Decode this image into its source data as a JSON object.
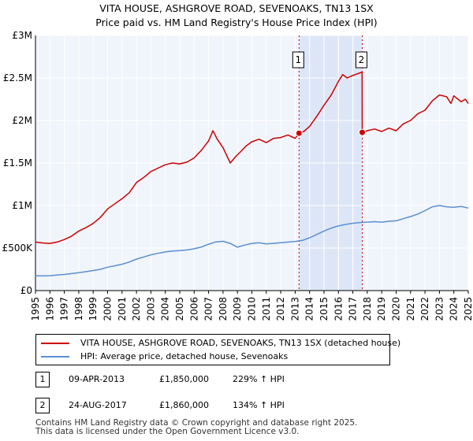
{
  "chart_data": {
    "type": "line",
    "title": "VITA HOUSE, ASHGROVE ROAD, SEVENOAKS, TN13 1SX",
    "subtitle": "Price paid vs. HM Land Registry's House Price Index (HPI)",
    "xlabel": "",
    "ylabel": "",
    "xlim": [
      1995,
      2025
    ],
    "ylim": [
      0,
      3000000
    ],
    "grid": true,
    "y_ticks": [
      {
        "value": 0,
        "label": "£0"
      },
      {
        "value": 500000,
        "label": "£500K"
      },
      {
        "value": 1000000,
        "label": "£1M"
      },
      {
        "value": 1500000,
        "label": "£1.5M"
      },
      {
        "value": 2000000,
        "label": "£2M"
      },
      {
        "value": 2500000,
        "label": "£2.5M"
      },
      {
        "value": 3000000,
        "label": "£3M"
      }
    ],
    "x_ticks": [
      "1995",
      "1996",
      "1997",
      "1998",
      "1999",
      "2000",
      "2001",
      "2002",
      "2003",
      "2004",
      "2005",
      "2006",
      "2007",
      "2008",
      "2009",
      "2010",
      "2011",
      "2012",
      "2013",
      "2014",
      "2015",
      "2016",
      "2017",
      "2018",
      "2019",
      "2020",
      "2021",
      "2022",
      "2023",
      "2024",
      "2025"
    ],
    "shaded_region": {
      "from": 2013.27,
      "to": 2017.65
    },
    "series": [
      {
        "name": "VITA HOUSE, ASHGROVE ROAD, SEVENOAKS, TN13 1SX (detached house)",
        "color": "#cc0000",
        "x": [
          1995.0,
          1995.5,
          1996.0,
          1996.5,
          1997.0,
          1997.5,
          1998.0,
          1998.5,
          1999.0,
          1999.5,
          2000.0,
          2000.5,
          2001.0,
          2001.5,
          2002.0,
          2002.5,
          2003.0,
          2003.5,
          2004.0,
          2004.5,
          2005.0,
          2005.5,
          2006.0,
          2006.5,
          2007.0,
          2007.3,
          2007.6,
          2008.0,
          2008.5,
          2008.9,
          2009.2,
          2009.6,
          2010.0,
          2010.5,
          2011.0,
          2011.5,
          2012.0,
          2012.5,
          2013.0,
          2013.27,
          2013.6,
          2014.0,
          2014.5,
          2015.0,
          2015.5,
          2016.0,
          2016.3,
          2016.6,
          2017.0,
          2017.5,
          2017.64,
          2017.65,
          2018.0,
          2018.5,
          2019.0,
          2019.5,
          2020.0,
          2020.5,
          2021.0,
          2021.5,
          2022.0,
          2022.5,
          2023.0,
          2023.5,
          2023.8,
          2024.0,
          2024.5,
          2024.8,
          2025.0
        ],
        "y": [
          570000,
          560000,
          555000,
          570000,
          600000,
          640000,
          700000,
          740000,
          790000,
          860000,
          960000,
          1020000,
          1080000,
          1150000,
          1270000,
          1330000,
          1400000,
          1440000,
          1480000,
          1500000,
          1490000,
          1510000,
          1560000,
          1650000,
          1760000,
          1880000,
          1780000,
          1680000,
          1500000,
          1580000,
          1630000,
          1700000,
          1750000,
          1780000,
          1740000,
          1790000,
          1800000,
          1830000,
          1790000,
          1850000,
          1870000,
          1930000,
          2050000,
          2180000,
          2300000,
          2460000,
          2540000,
          2500000,
          2530000,
          2560000,
          2570000,
          1860000,
          1880000,
          1900000,
          1870000,
          1910000,
          1880000,
          1960000,
          2000000,
          2080000,
          2120000,
          2230000,
          2300000,
          2280000,
          2200000,
          2290000,
          2220000,
          2250000,
          2200000
        ]
      },
      {
        "name": "HPI: Average price, detached house, Sevenoaks",
        "color": "#5b8fd0",
        "x": [
          1995.0,
          1995.5,
          1996.0,
          1996.5,
          1997.0,
          1997.5,
          1998.0,
          1998.5,
          1999.0,
          1999.5,
          2000.0,
          2000.5,
          2001.0,
          2001.5,
          2002.0,
          2002.5,
          2003.0,
          2003.5,
          2004.0,
          2004.5,
          2005.0,
          2005.5,
          2006.0,
          2006.5,
          2007.0,
          2007.5,
          2008.0,
          2008.5,
          2009.0,
          2009.5,
          2010.0,
          2010.5,
          2011.0,
          2011.5,
          2012.0,
          2012.5,
          2013.0,
          2013.5,
          2014.0,
          2014.5,
          2015.0,
          2015.5,
          2016.0,
          2016.5,
          2017.0,
          2017.5,
          2018.0,
          2018.5,
          2019.0,
          2019.5,
          2020.0,
          2020.5,
          2021.0,
          2021.5,
          2022.0,
          2022.5,
          2023.0,
          2023.5,
          2024.0,
          2024.5,
          2025.0
        ],
        "y": [
          175000,
          172000,
          175000,
          182000,
          190000,
          200000,
          210000,
          222000,
          236000,
          250000,
          275000,
          292000,
          310000,
          335000,
          370000,
          395000,
          420000,
          438000,
          455000,
          465000,
          470000,
          478000,
          492000,
          512000,
          545000,
          572000,
          580000,
          555000,
          510000,
          535000,
          555000,
          562000,
          548000,
          556000,
          562000,
          570000,
          578000,
          590000,
          620000,
          660000,
          700000,
          735000,
          760000,
          778000,
          792000,
          800000,
          805000,
          810000,
          805000,
          815000,
          820000,
          845000,
          870000,
          900000,
          940000,
          985000,
          1000000,
          985000,
          980000,
          990000,
          970000
        ]
      }
    ],
    "markers": [
      {
        "label": "1",
        "x": 2013.27,
        "y": 1850000
      },
      {
        "label": "2",
        "x": 2017.65,
        "y": 1860000
      }
    ]
  },
  "transactions": [
    {
      "id": "1",
      "date": "09-APR-2013",
      "price": "£1,850,000",
      "hpi": "229% ↑ HPI"
    },
    {
      "id": "2",
      "date": "24-AUG-2017",
      "price": "£1,860,000",
      "hpi": "134% ↑ HPI"
    }
  ],
  "footer": {
    "line1": "Contains HM Land Registry data © Crown copyright and database right 2025.",
    "line2": "This data is licensed under the Open Government Licence v3.0."
  }
}
